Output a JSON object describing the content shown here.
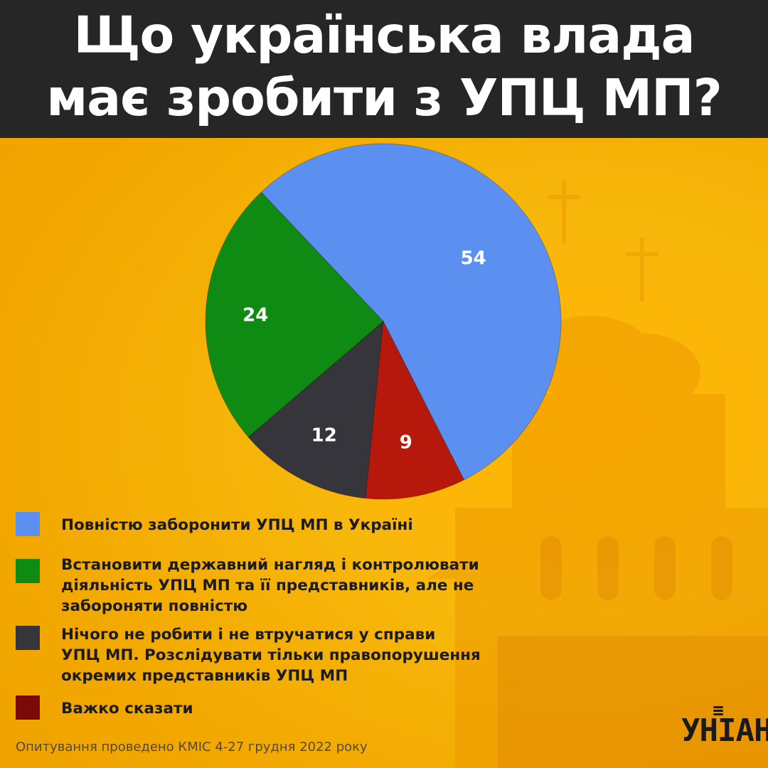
{
  "header": {
    "title_line1": "Що українська влада",
    "title_line2": "має зробити з УПЦ МП?"
  },
  "chart_data": {
    "type": "pie",
    "categories": [
      "Повністю заборонити УПЦ МП в Україні",
      "Встановити державний нагляд і контролювати діяльність УПЦ МП та її представників, але не забороняти повністю",
      "Нічого не робити і не втручатися у справи УПЦ МП. Розслідувати тільки правопорушення окремих представників УПЦ МП",
      "Важко сказати"
    ],
    "values": [
      54,
      24,
      12,
      9
    ],
    "colors": [
      "#5b8ff0",
      "#0f8a12",
      "#35353b",
      "#b7180c"
    ],
    "start_angle_deg": 297,
    "direction": "counterclockwise-from-blue"
  },
  "legend": {
    "items": [
      {
        "lines": [
          "Повністю заборонити УПЦ МП в Україні"
        ],
        "color": "#5b8ff0"
      },
      {
        "lines": [
          "Встановити державний нагляд і контролювати",
          "діяльність УПЦ МП та її представників, але не",
          "забороняти повністю"
        ],
        "color": "#0f8a12"
      },
      {
        "lines": [
          "Нічого не робити і не втручатися у справи",
          "УПЦ МП. Розслідувати тільки правопорушення",
          "окремих представників УПЦ МП"
        ],
        "color": "#35353b"
      },
      {
        "lines": [
          "Важко сказати"
        ],
        "color": "#7a0a06"
      }
    ]
  },
  "footnote": "Опитування проведено КМІС 4-27 грудня 2022 року",
  "logo": {
    "text": "УНІАН"
  }
}
